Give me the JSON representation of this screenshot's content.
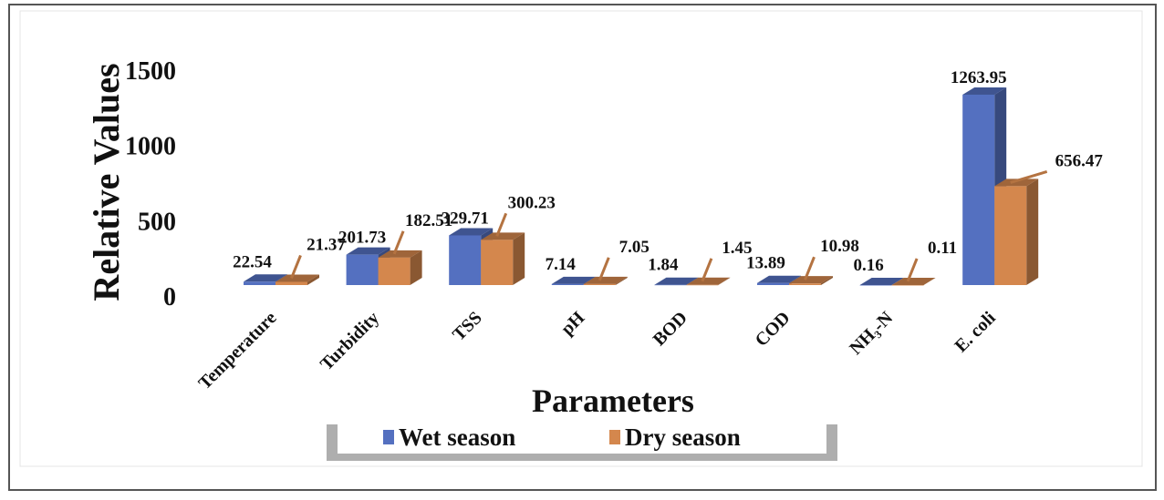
{
  "chart_data": {
    "type": "bar",
    "style": "3d-clustered-column",
    "xlabel": "Parameters",
    "ylabel": "Relative Values",
    "ylim": [
      0,
      1500
    ],
    "yticks": [
      0,
      500,
      1000,
      1500
    ],
    "grid": false,
    "legend_placement": "bottom",
    "categories": [
      "Temperature",
      "Turbidity",
      "TSS",
      "pH",
      "BOD",
      "COD",
      "NH3-N",
      "E. coli"
    ],
    "category_labels": [
      "Temperature",
      "Turbidity",
      "TSS",
      "pH",
      "BOD",
      "COD",
      "NH₃-N",
      "E. coli"
    ],
    "series": [
      {
        "name": "Wet season",
        "color": "#5470c0",
        "values": [
          22.54,
          201.73,
          329.71,
          7.14,
          1.84,
          13.89,
          0.16,
          1263.95
        ],
        "labels": [
          "22.54",
          "201.73",
          "329.71",
          "7.14",
          "1.84",
          "13.89",
          "0.16",
          "1263.95"
        ]
      },
      {
        "name": "Dry season",
        "color": "#d4874d",
        "values": [
          21.37,
          182.51,
          300.23,
          7.05,
          1.45,
          10.98,
          0.11,
          656.47
        ],
        "labels": [
          "21.37",
          "182.51",
          "300.23",
          "7.05",
          "1.45",
          "10.98",
          "0.11",
          "656.47"
        ]
      }
    ]
  }
}
